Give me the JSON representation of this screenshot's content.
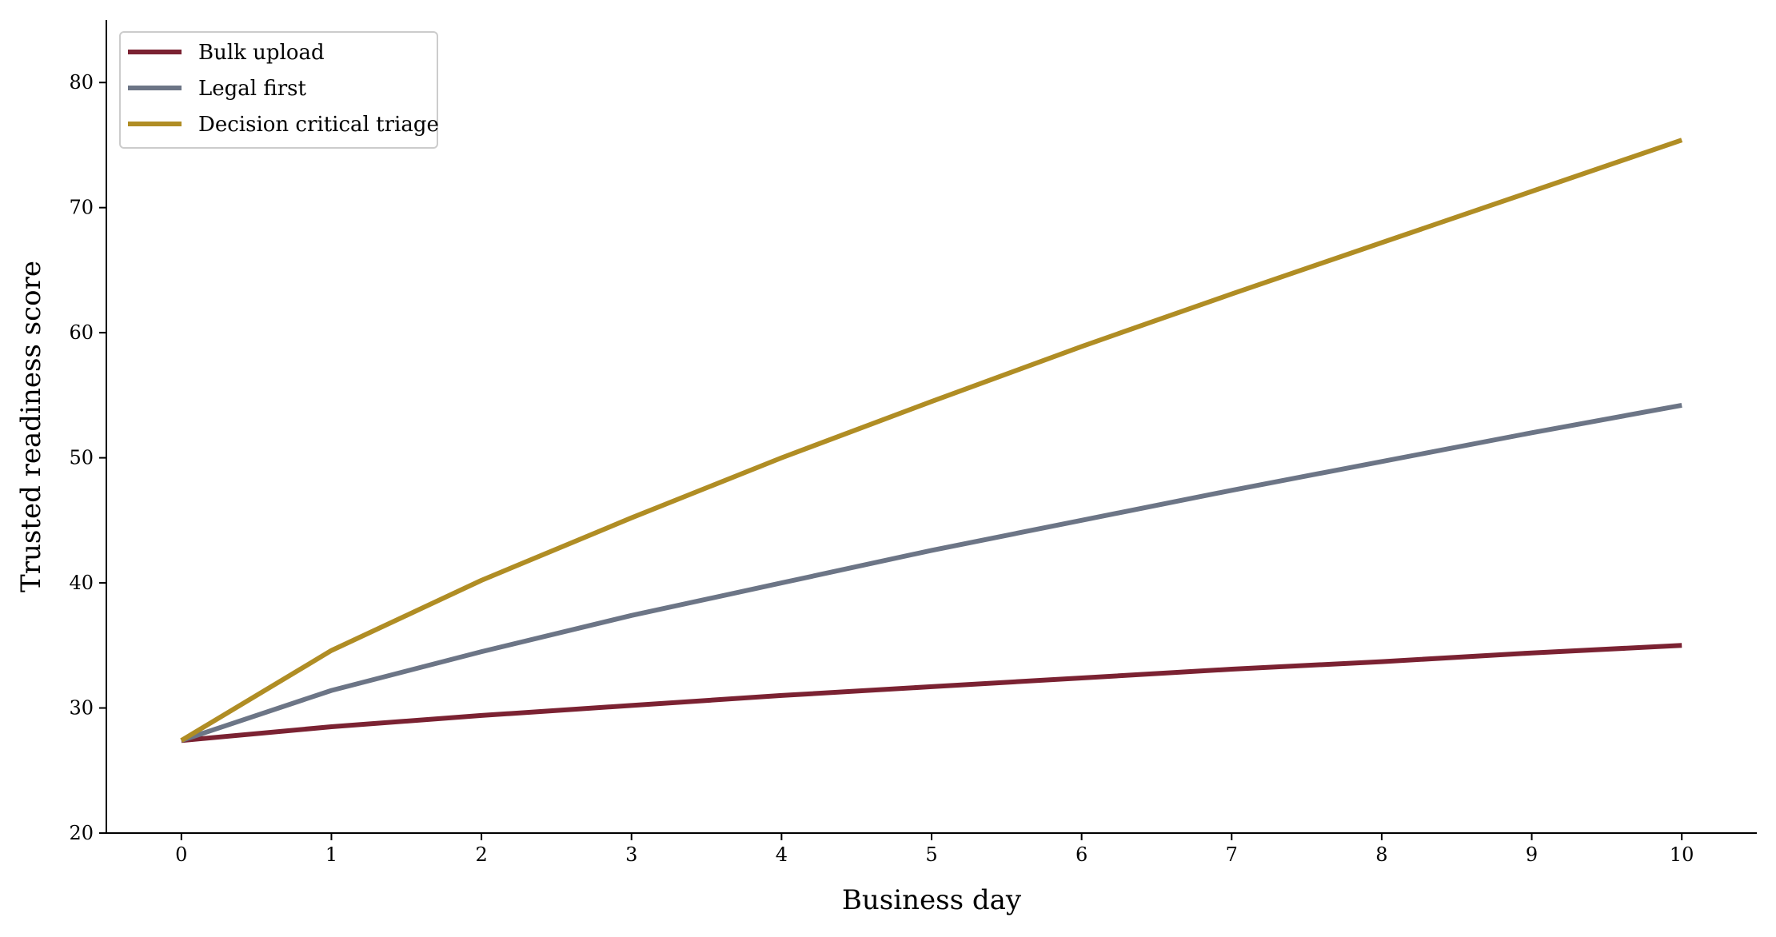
{
  "chart_data": {
    "type": "line",
    "xlabel": "Business day",
    "ylabel": "Trusted readiness score",
    "x": [
      0,
      1,
      2,
      3,
      4,
      5,
      6,
      7,
      8,
      9,
      10
    ],
    "xlim": [
      -0.5,
      10.5
    ],
    "ylim": [
      20,
      85
    ],
    "xticks": [
      0,
      1,
      2,
      3,
      4,
      5,
      6,
      7,
      8,
      9,
      10
    ],
    "yticks": [
      20,
      30,
      40,
      50,
      60,
      70,
      80
    ],
    "grid": false,
    "legend_position": "top-left",
    "series": [
      {
        "name": "Bulk upload",
        "color": "#7b2232",
        "values": [
          27.4,
          28.5,
          29.4,
          30.2,
          31.0,
          31.7,
          32.4,
          33.1,
          33.7,
          34.4,
          35.0
        ]
      },
      {
        "name": "Legal first",
        "color": "#6c7586",
        "values": [
          27.4,
          31.4,
          34.5,
          37.4,
          40.0,
          42.6,
          45.0,
          47.4,
          49.7,
          52.0,
          54.2
        ]
      },
      {
        "name": "Decision critical triage",
        "color": "#b08d24",
        "values": [
          27.4,
          34.6,
          40.2,
          45.2,
          50.0,
          54.5,
          58.9,
          63.1,
          67.2,
          71.3,
          75.4
        ]
      }
    ]
  }
}
